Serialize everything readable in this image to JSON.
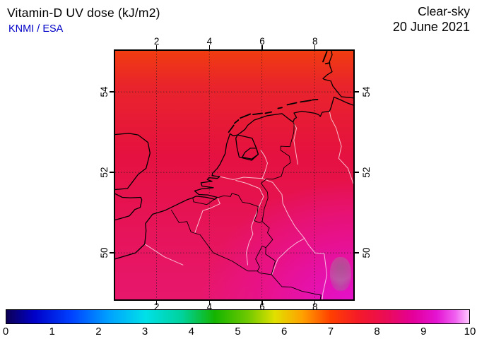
{
  "header": {
    "title": "Vitamin-D UV dose (kJ/m2)",
    "credit": "KNMI / ESA",
    "condition": "Clear-sky",
    "date": "20 June 2021"
  },
  "map": {
    "lon_ticks": [
      2,
      4,
      6,
      8
    ],
    "lat_ticks": [
      54,
      52,
      50
    ],
    "field_colors": {
      "top": "#f13c10",
      "upper": "#e9242b",
      "middle": "#e51140",
      "lower": "#e61356",
      "bottom": "#e8176d",
      "corner_magenta": "#e311d0"
    }
  },
  "colorbar": {
    "min": 0,
    "max": 10,
    "tick_labels": [
      "0",
      "1",
      "2",
      "3",
      "4",
      "5",
      "6",
      "7",
      "8",
      "9",
      "10"
    ],
    "gradient_stops": [
      [
        "0%",
        "#0d0055"
      ],
      [
        "6%",
        "#0000c8"
      ],
      [
        "14%",
        "#0040ff"
      ],
      [
        "22%",
        "#00a0ff"
      ],
      [
        "30%",
        "#00e0e8"
      ],
      [
        "38%",
        "#00d29b"
      ],
      [
        "45%",
        "#14b400"
      ],
      [
        "52%",
        "#6cc800"
      ],
      [
        "58%",
        "#e1e000"
      ],
      [
        "64%",
        "#ffa000"
      ],
      [
        "70%",
        "#ff4000"
      ],
      [
        "76%",
        "#f51a28"
      ],
      [
        "82%",
        "#ea0c55"
      ],
      [
        "88%",
        "#e4009b"
      ],
      [
        "93%",
        "#e414d2"
      ],
      [
        "97%",
        "#f060f0"
      ],
      [
        "100%",
        "#ffc8ff"
      ]
    ]
  }
}
